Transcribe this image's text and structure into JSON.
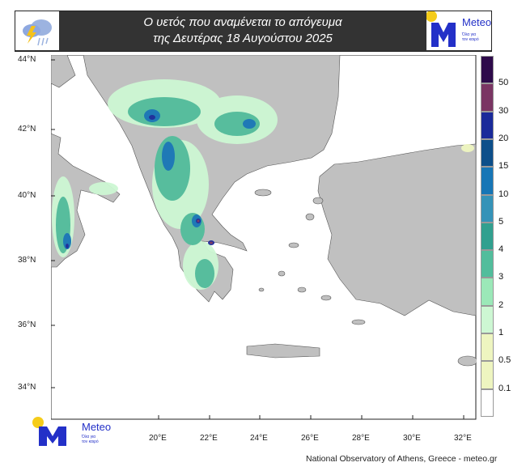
{
  "header": {
    "title_line1": "Ο υετός που αναμένεται το απόγευμα",
    "title_line2": "της Δευτέρας 18 Αυγούστου 2025",
    "icon": "rain-thunder-cloud-icon"
  },
  "logo": {
    "name": "Meteo",
    "tagline_line1": "Όλα για",
    "tagline_line2": "τον καιρό",
    "accent": "#f5cc1a",
    "brand": "#2330c8"
  },
  "map": {
    "lat_ticks": [
      "44°N",
      "42°N",
      "40°N",
      "38°N",
      "36°N",
      "34°N"
    ],
    "lon_ticks": [
      "20°E",
      "22°E",
      "24°E",
      "26°E",
      "28°E",
      "30°E",
      "32°E"
    ],
    "land_color": "#c0c0c0",
    "sea_color": "#ffffff"
  },
  "legend": {
    "levels": [
      "50",
      "30",
      "20",
      "15",
      "10",
      "5",
      "4",
      "3",
      "2",
      "1",
      "0.5",
      "0.1"
    ],
    "colors": [
      "#2d0a4a",
      "#7a3563",
      "#1a2a9a",
      "#0d4f8a",
      "#1776b6",
      "#3593b8",
      "#31a08f",
      "#52bd9c",
      "#9be8b8",
      "#cdf7d3",
      "#eef5c0",
      "#eef5c0",
      "#ffffff"
    ]
  },
  "footer": {
    "credit": "National Observatory of Athens, Greece - meteo.gr"
  }
}
